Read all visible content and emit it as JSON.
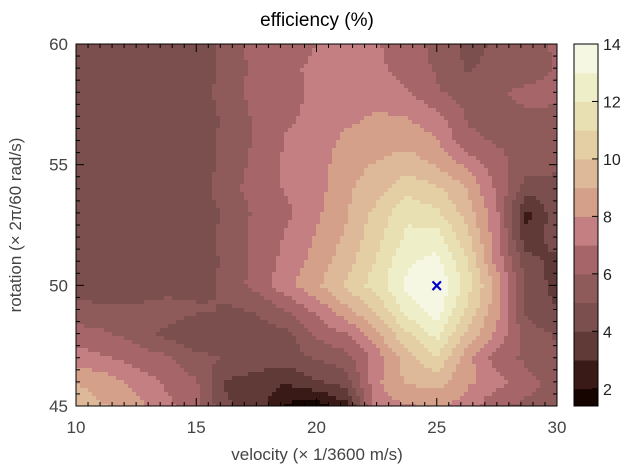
{
  "chart_data": {
    "type": "contour",
    "title": "efficiency (%)",
    "xlabel": "velocity (× 1/3600 m/s)",
    "ylabel": "rotation (× 2π/60 rad/s)",
    "xlim": [
      10,
      30
    ],
    "ylim": [
      45,
      60
    ],
    "xticks": [
      10,
      15,
      20,
      25,
      30
    ],
    "yticks": [
      45,
      50,
      55,
      60
    ],
    "x": [
      10,
      11.25,
      12.5,
      13.75,
      15,
      16.25,
      17.5,
      18.75,
      20,
      21.25,
      22.5,
      23.75,
      25,
      26.25,
      27.5,
      28.75,
      30
    ],
    "y": [
      45,
      46,
      47,
      48,
      49,
      50,
      51,
      52,
      53,
      54,
      55,
      56,
      57,
      58,
      59,
      60
    ],
    "z": [
      [
        9.6,
        9,
        8.3,
        7.3,
        6.3,
        4.1,
        3.6,
        1.8,
        1.5,
        2.7,
        7.7,
        7.9,
        8.2,
        7.6,
        6.1,
        5.8,
        5.6
      ],
      [
        9,
        8.5,
        7.7,
        6.8,
        6.1,
        3.9,
        3.5,
        3.1,
        3.9,
        4.5,
        7.8,
        9.1,
        9.4,
        8.2,
        7.4,
        6.3,
        5.7
      ],
      [
        7.5,
        7.1,
        6.5,
        6.2,
        5.3,
        4.9,
        4.7,
        4.5,
        5.1,
        5.6,
        7.4,
        9.6,
        10.9,
        8.5,
        6.4,
        5.8,
        5.1
      ],
      [
        6.3,
        6.1,
        5.6,
        4.7,
        4,
        4.4,
        4.5,
        4.7,
        6.2,
        7,
        8.9,
        10.8,
        12.4,
        9.8,
        7.8,
        5.5,
        4.9
      ],
      [
        5.5,
        5.3,
        5.2,
        5.8,
        5.2,
        4.9,
        5.1,
        6.1,
        7.3,
        8.8,
        10.2,
        12.5,
        13.5,
        10.9,
        8.3,
        4.6,
        4
      ],
      [
        4.1,
        4.1,
        4.1,
        4.2,
        4.5,
        5.3,
        6.4,
        7.7,
        8.8,
        10.2,
        11.5,
        13.2,
        14,
        11.5,
        8.7,
        4.6,
        3.7
      ],
      [
        4,
        4.1,
        4.1,
        4.2,
        4.4,
        5.2,
        6.3,
        7.3,
        8.4,
        9.6,
        11.1,
        12.8,
        13.3,
        11.2,
        7.6,
        4.4,
        3.6
      ],
      [
        4.1,
        4.2,
        4.2,
        4.3,
        4.4,
        5.3,
        6.3,
        7.1,
        8.1,
        9.2,
        10.7,
        12.2,
        12.5,
        10.3,
        7.4,
        3.1,
        4.6
      ],
      [
        4.1,
        4.1,
        4.2,
        4.2,
        4.3,
        5.2,
        6.2,
        6.8,
        7.8,
        8.9,
        10.3,
        11.8,
        11.2,
        9.6,
        7.2,
        2.7,
        4.7
      ],
      [
        4.2,
        4.3,
        4.2,
        4.4,
        4.4,
        5.6,
        6.4,
        7.1,
        7.6,
        8.8,
        9.6,
        10.6,
        10.2,
        9,
        6.8,
        4.4,
        4.8
      ],
      [
        4.1,
        4.2,
        4.2,
        4.3,
        4.3,
        5.4,
        6.3,
        7.2,
        7.5,
        8.6,
        9.1,
        9.6,
        8.9,
        7.8,
        6.4,
        5.5,
        5.1
      ],
      [
        4.1,
        4.2,
        4.1,
        4.2,
        4.3,
        5.3,
        6.1,
        7.1,
        7.6,
        8.2,
        8.4,
        8.6,
        8.1,
        6.2,
        5.9,
        5.6,
        5.7
      ],
      [
        4.1,
        4.1,
        4.2,
        4.2,
        4.4,
        5.2,
        6.2,
        6.8,
        7.3,
        7.8,
        8.1,
        8,
        7.3,
        5.9,
        5.7,
        5.9,
        5.9
      ],
      [
        4.2,
        4.1,
        4.2,
        4.2,
        4.4,
        5.5,
        6.4,
        6.7,
        7.2,
        7.6,
        7.7,
        7.1,
        6.1,
        5.6,
        5.9,
        6.2,
        6.1
      ],
      [
        4.1,
        4.1,
        4.2,
        4.2,
        4.3,
        5.3,
        6.3,
        6.9,
        7.1,
        7.4,
        7.3,
        6.4,
        5.9,
        4.9,
        5.3,
        5.6,
        6.1
      ],
      [
        4.1,
        4.1,
        4.2,
        4.3,
        4.3,
        5.4,
        6.5,
        6.7,
        7,
        7.3,
        7.1,
        6.3,
        5.8,
        4.7,
        5.1,
        5.7,
        6.1
      ]
    ],
    "levels": [
      1.4,
      2,
      3,
      4,
      5,
      6,
      7,
      8,
      9,
      10,
      11,
      12,
      13,
      14
    ],
    "colorbar": {
      "range": [
        1.4,
        14
      ],
      "ticks": [
        2,
        4,
        6,
        8,
        10,
        12,
        14
      ],
      "colors": [
        "#150400",
        "#3a1a16",
        "#5f3a36",
        "#7a4f4d",
        "#8e5b5a",
        "#a66568",
        "#c47f82",
        "#d4a08a",
        "#ddb99a",
        "#e3cfa3",
        "#e8e0b2",
        "#eeeec8",
        "#f6f7e2",
        "#ffffff"
      ]
    },
    "marker": {
      "x": 25,
      "y": 50,
      "symbol": "×",
      "color": "#0000cc"
    },
    "grid": false
  }
}
